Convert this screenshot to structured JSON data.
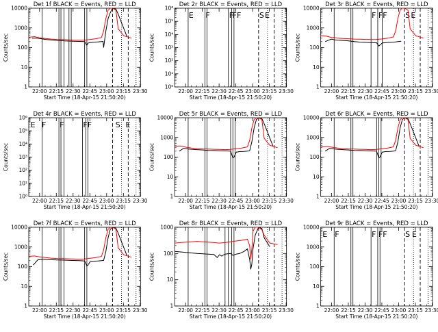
{
  "x_tick_labels": [
    "22:00",
    "22:15",
    "22:30",
    "22:45",
    "23:00",
    "23:15",
    "23:30"
  ],
  "y_label": "Counts/sec",
  "x_label": "Start Time (18-Apr-15 21:50:20)",
  "colors": {
    "events": "#000000",
    "lld": "#ff0000",
    "background": "#ffffff"
  },
  "chart_data": [
    {
      "type": "line",
      "title": "Det 1f BLACK = Events, RED = LLD",
      "xlabel": "Start Time (18-Apr-15 21:50:20)",
      "ylabel": "Counts/sec",
      "x_unit": "minutes since 21:50:20",
      "xlim": [
        0,
        100
      ],
      "yscale": "log",
      "ylim": [
        1,
        10000
      ],
      "y_tick_labels": [
        "1",
        "10",
        "100",
        "1000",
        "10000"
      ],
      "vlines_solid": [
        12,
        27,
        28.8,
        31.5,
        36,
        38,
        50,
        52
      ],
      "vlines_dashed": [
        75,
        89
      ],
      "vlines_dotted": [
        83,
        96
      ],
      "flag_labels": [],
      "series": [
        {
          "name": "Events",
          "color": "#000000",
          "x": [
            3,
            8,
            15,
            22,
            27,
            32,
            40,
            45,
            50,
            52,
            53,
            55,
            58,
            62,
            65,
            66.5,
            67,
            69,
            71,
            73,
            75,
            78,
            80,
            88
          ],
          "y": [
            300,
            300,
            260,
            240,
            230,
            220,
            210,
            205,
            200,
            130,
            170,
            180,
            190,
            195,
            200,
            205,
            100,
            700,
            3000,
            6000,
            10000,
            9000,
            5000,
            350
          ]
        },
        {
          "name": "LLD",
          "color": "#ff0000",
          "x": [
            0,
            5,
            10,
            15,
            20,
            25,
            30,
            35,
            40,
            45,
            50,
            55,
            60,
            65,
            67,
            69,
            71,
            73,
            75,
            78,
            80,
            85,
            92
          ],
          "y": [
            330,
            360,
            310,
            290,
            270,
            260,
            255,
            250,
            240,
            235,
            240,
            260,
            280,
            320,
            700,
            3000,
            8000,
            11000,
            10000,
            8000,
            900,
            400,
            300
          ]
        }
      ]
    },
    {
      "type": "line",
      "title": "Det 2r BLACK = Events, RED = LLD",
      "xlabel": "Start Time (18-Apr-15 21:50:20)",
      "ylabel": "Counts/sec",
      "x_unit": "minutes since 21:50:20",
      "xlim": [
        0,
        100
      ],
      "yscale": "log",
      "ylim": [
        1,
        1000000
      ],
      "y_tick_labels": [
        "10⁰",
        "10¹",
        "10²",
        "10³",
        "10⁴",
        "10⁵",
        "10⁶"
      ],
      "vlines_solid": [
        12,
        27,
        28.8,
        48,
        51,
        53
      ],
      "vlines_dashed": [
        75,
        89
      ],
      "vlines_dotted": [
        83,
        96
      ],
      "flag_labels": [
        {
          "text": "E",
          "x": 12
        },
        {
          "text": "F",
          "x": 27
        },
        {
          "text": "F",
          "x": 48
        },
        {
          "text": "FF",
          "x": 51
        },
        {
          "text": "S",
          "x": 75
        },
        {
          "text": "E",
          "x": 80
        }
      ],
      "series": []
    },
    {
      "type": "line",
      "title": "Det 3r BLACK = Events, RED = LLD",
      "xlabel": "Start Time (18-Apr-15 21:50:20)",
      "ylabel": "Counts/sec",
      "x_unit": "minutes since 21:50:20",
      "xlim": [
        0,
        100
      ],
      "yscale": "log",
      "ylim": [
        1,
        10000
      ],
      "y_tick_labels": [
        "1",
        "10",
        "100",
        "1000",
        "10000"
      ],
      "vlines_solid": [
        12,
        27,
        28.8,
        45,
        51,
        55
      ],
      "vlines_dashed": [
        75,
        89
      ],
      "vlines_dotted": [
        83,
        96
      ],
      "flag_labels": [
        {
          "text": "F",
          "x": 45
        },
        {
          "text": "FF",
          "x": 51
        },
        {
          "text": "S",
          "x": 75
        },
        {
          "text": "E",
          "x": 80
        }
      ],
      "series": [
        {
          "name": "Events",
          "color": "#000000",
          "x": [
            4,
            8,
            10,
            12,
            15,
            20,
            25,
            30,
            35,
            40,
            45,
            50,
            52,
            55,
            58,
            62,
            65,
            67,
            69,
            72
          ],
          "y": [
            200,
            250,
            270,
            250,
            240,
            230,
            220,
            200,
            190,
            185,
            180,
            175,
            120,
            170,
            180,
            185,
            190,
            195,
            200,
            210
          ]
        },
        {
          "name": "LLD",
          "color": "#ff0000",
          "x": [
            0,
            5,
            10,
            12,
            15,
            20,
            25,
            30,
            35,
            40,
            45,
            50,
            55,
            60,
            65,
            67,
            69,
            71,
            73,
            75,
            78,
            80,
            85,
            92
          ],
          "y": [
            400,
            380,
            320,
            330,
            300,
            290,
            280,
            270,
            265,
            260,
            255,
            260,
            275,
            300,
            350,
            700,
            3000,
            8000,
            11000,
            10000,
            8000,
            900,
            400,
            300
          ]
        }
      ]
    },
    {
      "type": "line",
      "title": "Det 4r BLACK = Events, RED = LLD",
      "xlabel": "Start Time (18-Apr-15 21:50:20)",
      "ylabel": "Counts/sec",
      "x_unit": "minutes since 21:50:20",
      "xlim": [
        0,
        100
      ],
      "yscale": "log",
      "ylim": [
        1,
        1000000
      ],
      "y_tick_labels": [
        "10⁰",
        "10¹",
        "10²",
        "10³",
        "10⁴",
        "10⁵",
        "10⁶"
      ],
      "vlines_solid": [
        12,
        27,
        28.8,
        31.5,
        48,
        51,
        53
      ],
      "vlines_dashed": [
        75,
        89
      ],
      "vlines_dotted": [
        83,
        96
      ],
      "flag_labels": [
        {
          "text": "E",
          "x": 1
        },
        {
          "text": "F",
          "x": 11
        },
        {
          "text": "F",
          "x": 27
        },
        {
          "text": "FF",
          "x": 48
        },
        {
          "text": "S",
          "x": 77
        },
        {
          "text": "E",
          "x": 86
        }
      ],
      "series": []
    },
    {
      "type": "line",
      "title": "Det 5r BLACK = Events, RED = LLD",
      "xlabel": "Start Time (18-Apr-15 21:50:20)",
      "ylabel": "Counts/sec",
      "x_unit": "minutes since 21:50:20",
      "xlim": [
        0,
        100
      ],
      "yscale": "log",
      "ylim": [
        1,
        10000
      ],
      "y_tick_labels": [
        "1",
        "10",
        "100",
        "1000",
        "10000"
      ],
      "vlines_solid": [
        12,
        27,
        28.8,
        50,
        52,
        54
      ],
      "vlines_dashed": [
        75,
        89
      ],
      "vlines_dotted": [
        83,
        96
      ],
      "flag_labels": [],
      "series": [
        {
          "name": "Events",
          "color": "#000000",
          "x": [
            4,
            8,
            12,
            15,
            20,
            25,
            30,
            35,
            40,
            45,
            50,
            52,
            53,
            55,
            58,
            62,
            65,
            67,
            69,
            71,
            73,
            75,
            78,
            80,
            88
          ],
          "y": [
            200,
            280,
            260,
            250,
            240,
            230,
            220,
            215,
            210,
            205,
            200,
            90,
            100,
            180,
            190,
            195,
            200,
            210,
            600,
            3000,
            8000,
            10000,
            9000,
            5000,
            350
          ]
        },
        {
          "name": "LLD",
          "color": "#ff0000",
          "x": [
            0,
            5,
            10,
            15,
            20,
            25,
            30,
            35,
            40,
            45,
            50,
            55,
            60,
            65,
            67,
            69,
            71,
            73,
            75,
            78,
            80,
            85,
            92
          ],
          "y": [
            350,
            370,
            320,
            290,
            270,
            260,
            255,
            250,
            245,
            240,
            245,
            265,
            290,
            330,
            700,
            3000,
            8000,
            11000,
            10000,
            8000,
            900,
            400,
            300
          ]
        }
      ]
    },
    {
      "type": "line",
      "title": "Det 6r BLACK = Events, RED = LLD",
      "xlabel": "Start Time (18-Apr-15 21:50:20)",
      "ylabel": "Counts/sec",
      "x_unit": "minutes since 21:50:20",
      "xlim": [
        0,
        100
      ],
      "yscale": "log",
      "ylim": [
        1,
        10000
      ],
      "y_tick_labels": [
        "1",
        "10",
        "100",
        "1000",
        "10000"
      ],
      "vlines_solid": [
        12,
        27,
        28.8,
        50,
        52,
        54
      ],
      "vlines_dashed": [
        75,
        89
      ],
      "vlines_dotted": [
        83,
        96
      ],
      "flag_labels": [],
      "series": [
        {
          "name": "Events",
          "color": "#000000",
          "x": [
            4,
            8,
            12,
            15,
            20,
            25,
            30,
            35,
            40,
            45,
            50,
            52,
            53,
            55,
            58,
            62,
            65,
            67,
            69,
            71,
            73,
            75,
            78,
            80,
            88
          ],
          "y": [
            200,
            280,
            260,
            250,
            240,
            230,
            220,
            215,
            210,
            205,
            200,
            90,
            100,
            180,
            190,
            195,
            200,
            210,
            600,
            3000,
            8000,
            10000,
            9000,
            5000,
            350
          ]
        },
        {
          "name": "LLD",
          "color": "#ff0000",
          "x": [
            0,
            5,
            10,
            15,
            20,
            25,
            30,
            35,
            40,
            45,
            50,
            55,
            60,
            65,
            67,
            69,
            71,
            73,
            75,
            78,
            80,
            85,
            92
          ],
          "y": [
            330,
            350,
            320,
            290,
            270,
            260,
            255,
            250,
            245,
            240,
            245,
            265,
            290,
            330,
            700,
            3000,
            8000,
            11000,
            10000,
            8000,
            900,
            400,
            300
          ]
        }
      ]
    },
    {
      "type": "line",
      "title": "Det 7f BLACK = Events, RED = LLD",
      "xlabel": "Start Time (18-Apr-15 21:50:20)",
      "ylabel": "Counts/sec",
      "x_unit": "minutes since 21:50:20",
      "xlim": [
        0,
        100
      ],
      "yscale": "log",
      "ylim": [
        1,
        10000
      ],
      "y_tick_labels": [
        "1",
        "10",
        "100",
        "1000",
        "10000"
      ],
      "vlines_solid": [
        12,
        27,
        28.8,
        31.5,
        50,
        52
      ],
      "vlines_dashed": [
        75,
        89
      ],
      "vlines_dotted": [
        83,
        96
      ],
      "flag_labels": [],
      "series": [
        {
          "name": "Events",
          "color": "#000000",
          "x": [
            4,
            8,
            12,
            15,
            20,
            25,
            30,
            35,
            40,
            45,
            50,
            52,
            53,
            55,
            58,
            62,
            65,
            67,
            69,
            71,
            73,
            75,
            78,
            80,
            88
          ],
          "y": [
            120,
            220,
            240,
            230,
            225,
            220,
            215,
            210,
            205,
            200,
            195,
            110,
            120,
            180,
            190,
            195,
            200,
            205,
            600,
            3000,
            8000,
            10000,
            9000,
            5000,
            350
          ]
        },
        {
          "name": "LLD",
          "color": "#ff0000",
          "x": [
            0,
            5,
            10,
            15,
            20,
            25,
            30,
            35,
            40,
            45,
            50,
            55,
            60,
            65,
            67,
            69,
            71,
            73,
            75,
            78,
            80,
            85,
            92
          ],
          "y": [
            330,
            350,
            310,
            290,
            270,
            260,
            255,
            250,
            245,
            240,
            245,
            265,
            290,
            330,
            700,
            3000,
            8000,
            11000,
            10000,
            8000,
            900,
            400,
            300
          ]
        }
      ]
    },
    {
      "type": "line",
      "title": "Det 8r BLACK = Events, RED = LLD",
      "xlabel": "Start Time (18-Apr-15 21:50:20)",
      "ylabel": "Counts/sec",
      "x_unit": "minutes since 21:50:20",
      "xlim": [
        0,
        100
      ],
      "yscale": "log",
      "ylim": [
        1,
        1000
      ],
      "y_tick_labels": [
        "1",
        "10",
        "100",
        "1000"
      ],
      "vlines_solid": [
        12,
        27,
        28.8,
        45,
        48,
        51,
        53
      ],
      "vlines_dashed": [
        75,
        89
      ],
      "vlines_dotted": [
        83,
        96
      ],
      "flag_labels": [],
      "series": [
        {
          "name": "Events",
          "color": "#000000",
          "x": [
            0,
            5,
            10,
            15,
            20,
            25,
            30,
            35,
            38,
            40,
            42,
            45,
            50,
            52,
            55,
            58,
            62,
            65,
            67,
            68,
            69,
            70,
            72,
            75,
            78,
            80,
            85
          ],
          "y": [
            120,
            115,
            110,
            105,
            100,
            98,
            95,
            92,
            70,
            90,
            80,
            95,
            100,
            85,
            95,
            100,
            120,
            150,
            60,
            25,
            40,
            150,
            500,
            1200,
            900,
            400,
            180
          ]
        },
        {
          "name": "LLD",
          "color": "#ff0000",
          "x": [
            0,
            5,
            10,
            15,
            20,
            25,
            30,
            35,
            40,
            45,
            50,
            55,
            60,
            65,
            67,
            68,
            69,
            70,
            72,
            75,
            78,
            80,
            85,
            92
          ],
          "y": [
            250,
            260,
            270,
            280,
            290,
            280,
            270,
            260,
            250,
            260,
            280,
            300,
            320,
            350,
            200,
            60,
            150,
            700,
            1500,
            1100,
            800,
            500,
            250,
            220
          ]
        }
      ]
    },
    {
      "type": "line",
      "title": "Det 9r BLACK = Events, RED = LLD",
      "xlabel": "Start Time (18-Apr-15 21:50:20)",
      "ylabel": "Counts/sec",
      "x_unit": "minutes since 21:50:20",
      "xlim": [
        0,
        100
      ],
      "yscale": "log",
      "ylim": [
        1,
        10000
      ],
      "y_tick_labels": [
        "1",
        "10",
        "100",
        "1000",
        "10000"
      ],
      "vlines_solid": [
        12,
        27,
        28.8,
        45,
        51,
        53
      ],
      "vlines_dashed": [
        75,
        89
      ],
      "vlines_dotted": [
        83,
        96
      ],
      "flag_labels": [
        {
          "text": "E",
          "x": 1
        },
        {
          "text": "F",
          "x": 12
        },
        {
          "text": "F",
          "x": 45
        },
        {
          "text": "FF",
          "x": 51
        },
        {
          "text": "S",
          "x": 75
        },
        {
          "text": "E",
          "x": 81
        }
      ],
      "series": []
    }
  ]
}
